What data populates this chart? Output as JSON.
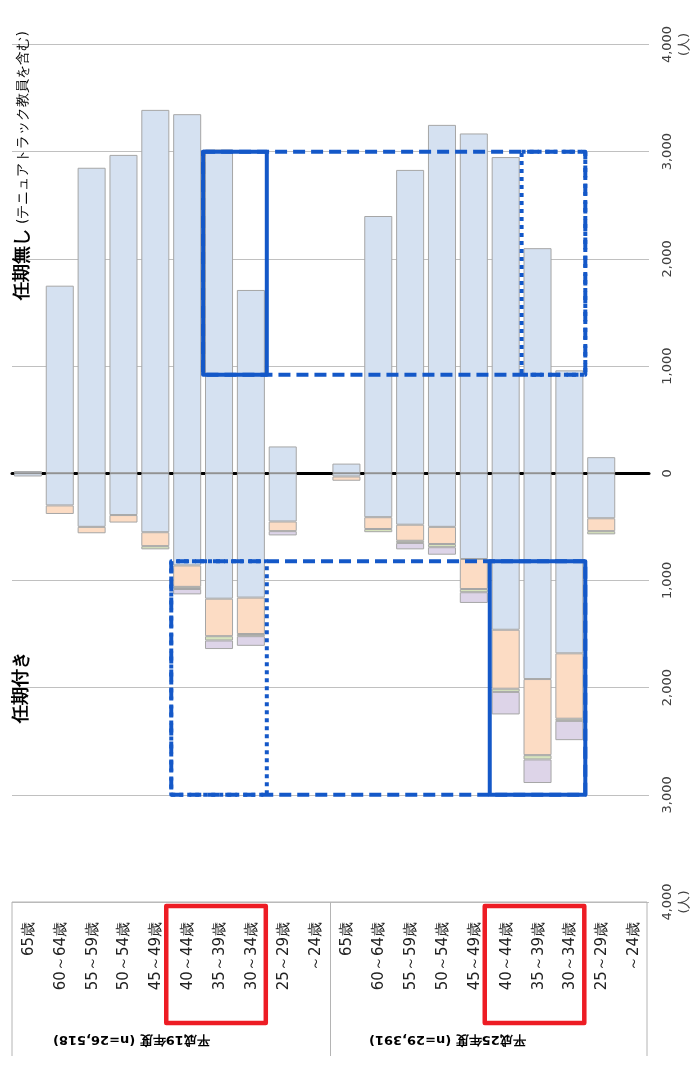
{
  "chart_data": {
    "type": "bar",
    "stacked": true,
    "categories": [
      "65歳",
      "60～64歳",
      "55～59歳",
      "50～54歳",
      "45～49歳",
      "40～44歳",
      "35～39歳",
      "30～34歳",
      "25～29歳",
      "～24歳",
      "65歳",
      "60～64歳",
      "55～59歳",
      "50～54歳",
      "45～49歳",
      "40～44歳",
      "35～39歳",
      "30～34歳",
      "25～29歳",
      "～24歳"
    ],
    "series": [
      {
        "color": "#d5e1f1",
        "values": [
          20,
          1750,
          2850,
          2970,
          3390,
          3350,
          3020,
          1710,
          250,
          null,
          90,
          2400,
          2830,
          3250,
          3170,
          2950,
          2100,
          960,
          150,
          null
        ]
      },
      {
        "color": "#d5e1f1",
        "values": [
          -30,
          -300,
          -500,
          -390,
          -550,
          -860,
          -1170,
          -1160,
          -450,
          null,
          -30,
          -410,
          -480,
          -500,
          -800,
          -1460,
          -1920,
          -1680,
          -420,
          null
        ]
      },
      {
        "color": "#fcdcc4",
        "values": [
          null,
          -80,
          -60,
          -70,
          -130,
          -200,
          -350,
          -340,
          -90,
          null,
          -40,
          -110,
          -150,
          -160,
          -280,
          -550,
          -710,
          -610,
          -120,
          null
        ]
      },
      {
        "color": "#d7e4bd",
        "values": [
          null,
          null,
          null,
          null,
          -30,
          -20,
          -40,
          -20,
          null,
          null,
          null,
          -30,
          -20,
          -30,
          -30,
          -30,
          -40,
          -20,
          -30,
          null
        ]
      },
      {
        "color": "#ddd4e8",
        "values": [
          null,
          null,
          null,
          null,
          null,
          -50,
          -80,
          -90,
          -40,
          null,
          null,
          null,
          -60,
          -70,
          -100,
          -210,
          -220,
          -180,
          null,
          null
        ]
      }
    ],
    "ylim": [
      -4000,
      4000
    ],
    "yticks": [
      {
        "value": -4000,
        "label": "4,000\n(人)"
      },
      {
        "value": -3000,
        "label": "3,000"
      },
      {
        "value": -2000,
        "label": "2,000"
      },
      {
        "value": -1000,
        "label": "1,000"
      },
      0,
      {
        "value": 1000,
        "label": "1,000"
      },
      {
        "value": 2000,
        "label": "2,000"
      },
      {
        "value": 3000,
        "label": "3,000"
      },
      {
        "value": 4000,
        "label": "4,000\n(人)"
      }
    ],
    "grid": "y",
    "annotations": [
      "任期無し (テニュアトラック教員を含む)",
      "任期付き",
      "平成19年度 (n=26,518)",
      "平成25年度 (n=29,391)"
    ]
  }
}
